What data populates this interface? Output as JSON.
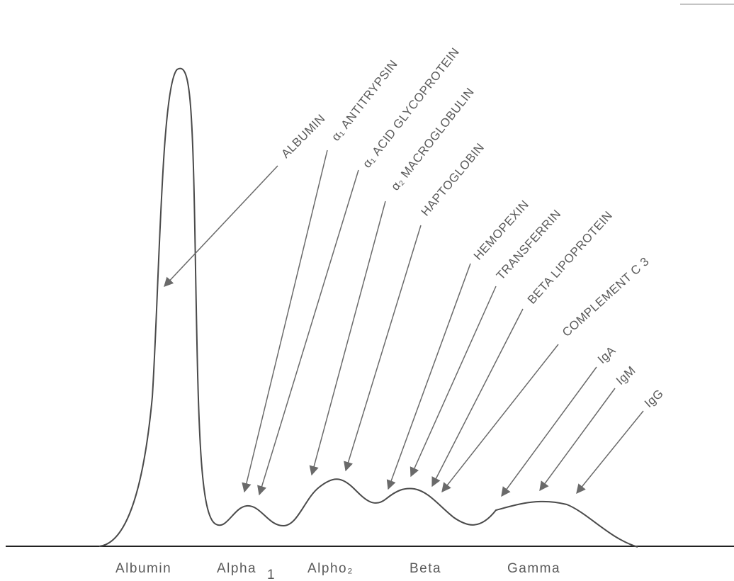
{
  "fractions": {
    "albumin": "Albumin",
    "alpha1": "Alpha",
    "alpha1_sub": "1",
    "alpha2": "Alpho₂",
    "beta": "Beta",
    "gamma": "Gamma"
  },
  "proteins": [
    {
      "id": "albumin",
      "label": "ALBUMIN"
    },
    {
      "id": "alpha1-antitrypsin",
      "label": "α₁ ANTITRYPSIN"
    },
    {
      "id": "alpha1-acid-glycoprotein",
      "label": "α₁ ACID GLYCOPROTEIN"
    },
    {
      "id": "alpha2-macroglobulin",
      "label": "α₂ MACROGLOBULIN"
    },
    {
      "id": "haptoglobin",
      "label": "HAPTOGLOBIN"
    },
    {
      "id": "hemopexin",
      "label": "HEMOPEXIN"
    },
    {
      "id": "transferrin",
      "label": "TRANSFERRIN"
    },
    {
      "id": "beta-lipoprotein",
      "label": "BETA LIPOPROTEIN"
    },
    {
      "id": "complement-c3",
      "label": "COMPLEMENT C 3"
    },
    {
      "id": "iga",
      "label": "IgA"
    },
    {
      "id": "igm",
      "label": "IgM"
    },
    {
      "id": "igg",
      "label": "IgG"
    }
  ],
  "colors": {
    "curve": "#4a4a4a",
    "arrow": "#6a6a6a",
    "text": "#5a5a5a",
    "background": "#ffffff"
  }
}
